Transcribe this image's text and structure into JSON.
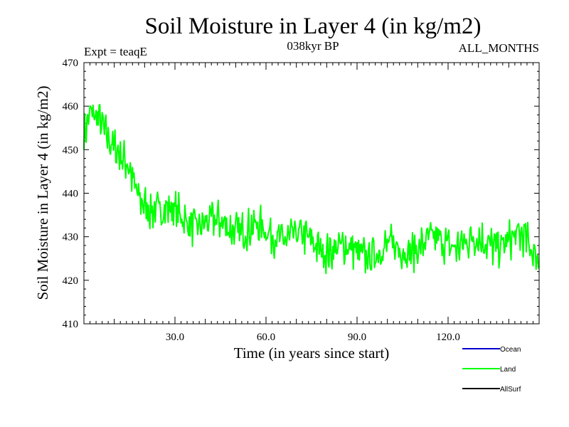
{
  "chart_data": {
    "type": "line",
    "title": "Soil Moisture in Layer 4 (in kg/m2)",
    "subtitle_left": "Expt = teaqE",
    "subtitle_center": "038kyr BP",
    "subtitle_right": "ALL_MONTHS",
    "xlabel": "Time (in years since start)",
    "ylabel": "Soil Moisture in Layer 4 (in kg/m2)",
    "xlim": [
      0,
      150
    ],
    "ylim": [
      410,
      470
    ],
    "x_ticks": [
      30,
      60,
      90,
      120
    ],
    "x_tick_labels": [
      "30.0",
      "60.0",
      "90.0",
      "120.0"
    ],
    "y_ticks": [
      410,
      420,
      430,
      440,
      450,
      460,
      470
    ],
    "y_tick_labels": [
      "410",
      "420",
      "430",
      "440",
      "450",
      "460",
      "470"
    ],
    "grid": false,
    "legend": [
      {
        "name": "Ocean",
        "color": "#0000cc"
      },
      {
        "name": "Land",
        "color": "#00ff00"
      },
      {
        "name": "AllSurf",
        "color": "#000000"
      }
    ],
    "legend_position": "bottom-right",
    "series": [
      {
        "name": "Land",
        "color": "#00ff00",
        "x_start": 0,
        "x_step": 0.25,
        "trend_points": [
          [
            0,
            452
          ],
          [
            2,
            457
          ],
          [
            5,
            457
          ],
          [
            8,
            453
          ],
          [
            11,
            449
          ],
          [
            13,
            446
          ],
          [
            15,
            444
          ],
          [
            16,
            441
          ],
          [
            18,
            438
          ],
          [
            22,
            437
          ],
          [
            30,
            435.5
          ],
          [
            40,
            434
          ],
          [
            50,
            432.5
          ],
          [
            60,
            430
          ],
          [
            70,
            429
          ],
          [
            80,
            428
          ],
          [
            90,
            427.5
          ],
          [
            100,
            427
          ],
          [
            110,
            427
          ],
          [
            120,
            428
          ],
          [
            130,
            429
          ],
          [
            140,
            430
          ],
          [
            145,
            430
          ],
          [
            150,
            426
          ]
        ],
        "noise_amplitude": 3.6,
        "seed": 7
      }
    ]
  }
}
